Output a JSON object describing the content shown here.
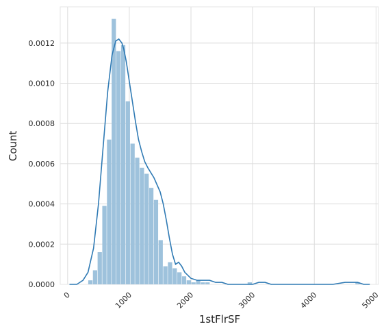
{
  "chart_data": {
    "type": "histogram",
    "title": "",
    "xlabel": "1stFlrSF",
    "ylabel": "Count",
    "xlim": [
      -120,
      5040
    ],
    "ylim": [
      0,
      0.00138
    ],
    "grid": true,
    "x_ticks": [
      0,
      1000,
      2000,
      3000,
      4000,
      5000
    ],
    "x_tick_labels": [
      "0",
      "1000",
      "2000",
      "3000",
      "4000",
      "5000"
    ],
    "y_ticks": [
      0,
      0.0002,
      0.0004,
      0.0006,
      0.0008,
      0.001,
      0.0012
    ],
    "y_tick_labels": [
      "0.0000",
      "0.0002",
      "0.0004",
      "0.0006",
      "0.0008",
      "0.0010",
      "0.0012"
    ],
    "bar_color": "#9ec2dc",
    "line_color": "#2f7ab4",
    "bin_width": 76,
    "bins_start": [
      334,
      410,
      486,
      562,
      638,
      714,
      790,
      866,
      942,
      1018,
      1094,
      1170,
      1246,
      1322,
      1398,
      1474,
      1550,
      1626,
      1702,
      1778,
      1854,
      1930,
      2006,
      2082,
      2158,
      2234,
      2310,
      2386,
      2462,
      2538,
      2614,
      2690,
      2766,
      2842,
      2918,
      2994,
      3070,
      3146,
      3222,
      3298,
      3374,
      3450,
      3526,
      3602,
      3678,
      3754,
      3830,
      3906,
      3982,
      4058,
      4134,
      4210,
      4286,
      4362,
      4438,
      4514,
      4590,
      4666
    ],
    "density": [
      2e-05,
      7e-05,
      0.00016,
      0.00039,
      0.00072,
      0.00132,
      0.00116,
      0.00119,
      0.00091,
      0.0007,
      0.00063,
      0.00058,
      0.00055,
      0.00048,
      0.00042,
      0.00022,
      9e-05,
      0.00011,
      8e-05,
      6e-05,
      4e-05,
      2e-05,
      1e-05,
      2e-05,
      1e-05,
      1e-05,
      0.0,
      0.0,
      0.0,
      0.0,
      0.0,
      0.0,
      0.0,
      0.0,
      1e-05,
      0.0,
      0.0,
      0.0,
      0.0,
      0.0,
      0.0,
      0.0,
      0.0,
      0.0,
      0.0,
      0.0,
      0.0,
      0.0,
      0.0,
      0.0,
      0.0,
      0.0,
      0.0,
      0.0,
      0.0,
      0.0,
      0.0,
      1e-05
    ],
    "kde": {
      "x": [
        30,
        150,
        250,
        330,
        420,
        500,
        580,
        650,
        720,
        780,
        830,
        880,
        910,
        950,
        1000,
        1050,
        1100,
        1150,
        1200,
        1250,
        1300,
        1400,
        1500,
        1550,
        1600,
        1650,
        1700,
        1750,
        1800,
        1850,
        1900,
        2000,
        2100,
        2200,
        2300,
        2400,
        2500,
        2600,
        2700,
        2800,
        2900,
        3000,
        3100,
        3200,
        3300,
        3500,
        3700,
        3900,
        4100,
        4300,
        4500,
        4600,
        4700,
        4800,
        4900
      ],
      "y": [
        0.0,
        0.0,
        2e-05,
        6e-05,
        0.00018,
        0.0004,
        0.0007,
        0.00096,
        0.00114,
        0.00121,
        0.00122,
        0.0012,
        0.00117,
        0.00111,
        0.00101,
        0.00091,
        0.00081,
        0.00072,
        0.00066,
        0.00061,
        0.00058,
        0.00053,
        0.00046,
        0.0004,
        0.00032,
        0.00023,
        0.00015,
        0.0001,
        0.00011,
        9e-05,
        6e-05,
        3e-05,
        2e-05,
        2e-05,
        2e-05,
        1e-05,
        1e-05,
        0.0,
        0.0,
        0.0,
        0.0,
        0.0,
        1e-05,
        1e-05,
        0.0,
        0.0,
        0.0,
        0.0,
        0.0,
        0.0,
        1e-05,
        1e-05,
        1e-05,
        0.0,
        0.0
      ]
    }
  }
}
